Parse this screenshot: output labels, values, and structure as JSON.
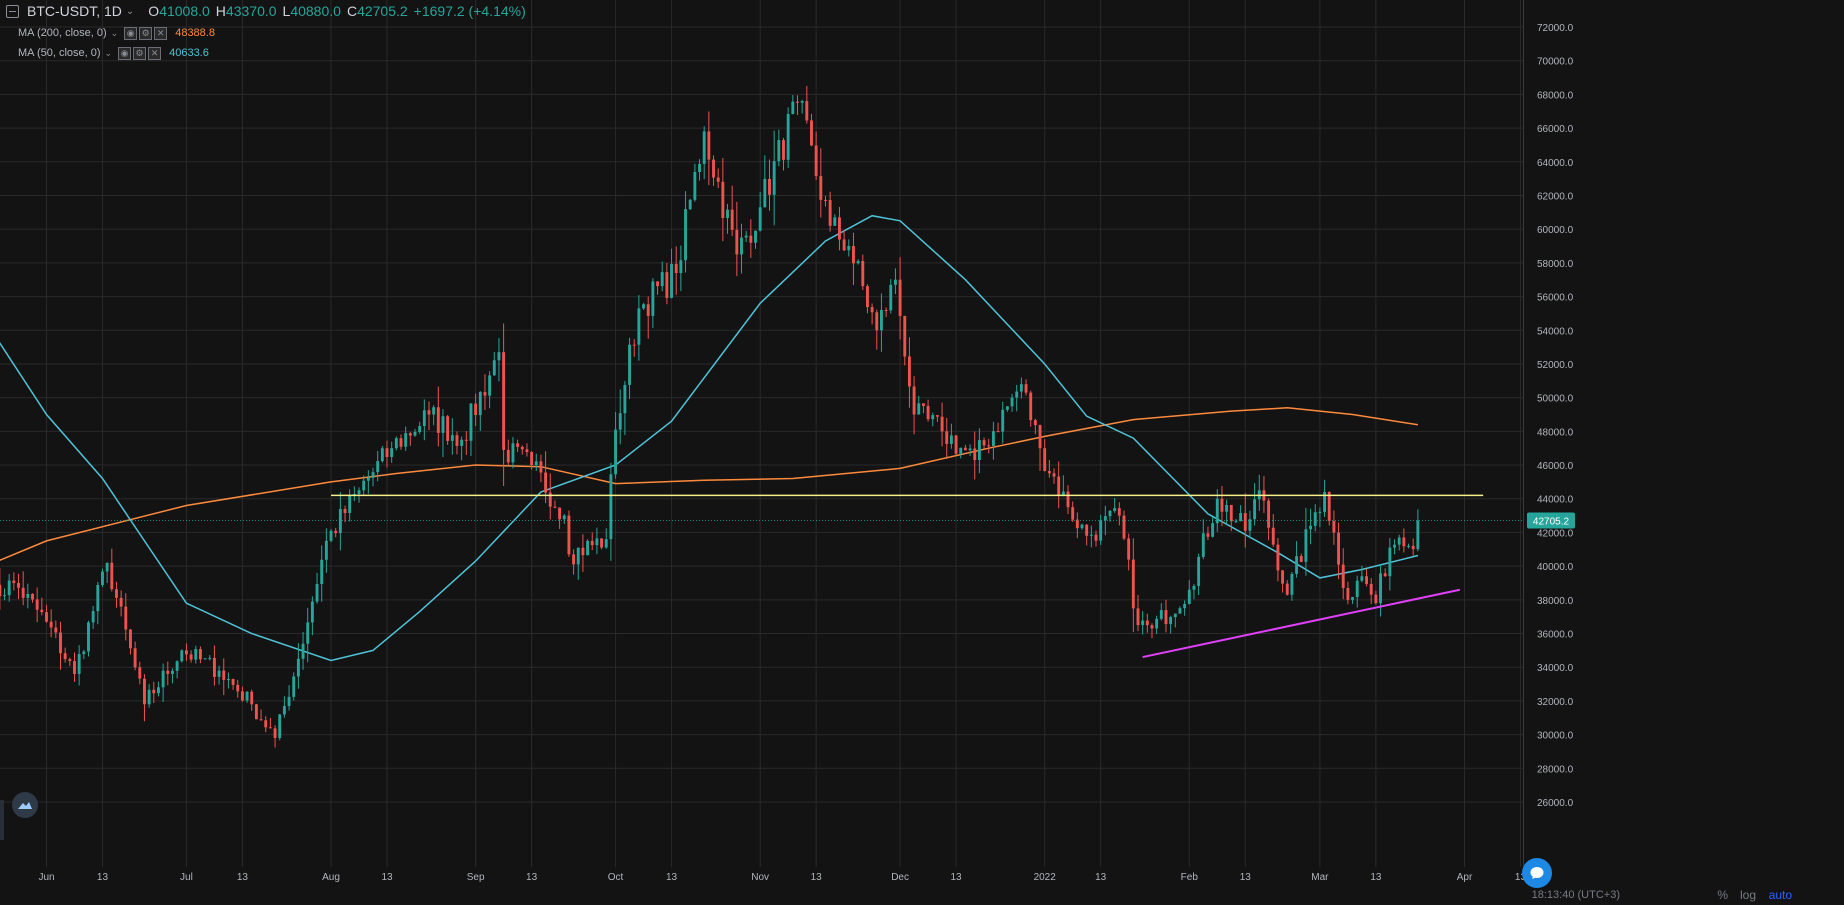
{
  "legend": {
    "symbol": "BTC-USDT, 1D",
    "open_label": "O",
    "open": "41008.0",
    "high_label": "H",
    "high": "43370.0",
    "low_label": "L",
    "low": "40880.0",
    "close_label": "C",
    "close": "42705.2",
    "change": "+1697.2 (+4.14%)",
    "ma200_label": "MA (200, close, 0)",
    "ma200_value": "48388.8",
    "ma50_label": "MA (50, close, 0)",
    "ma50_value": "40633.6"
  },
  "price_tag": "42705.2",
  "bottom": {
    "time": "18:13:40 (UTC+3)",
    "percent": "%",
    "log": "log",
    "auto": "auto"
  },
  "icons": [
    "collapse-icon",
    "chevron-down-icon",
    "settings-icon",
    "eye-icon",
    "close-icon",
    "logo-icon",
    "chat-icon"
  ],
  "colors": {
    "background": "#131313",
    "up": "#26a69a",
    "down": "#ef5350",
    "ma200": "#ff8a3d",
    "ma50": "#4fc3d8",
    "resistance": "#f6f08b",
    "support": "#e040fb",
    "grid": "#2a2a2a",
    "price_tag_bg": "#26a69a"
  },
  "chart_data": {
    "type": "candlestick",
    "title": "BTC-USDT, 1D",
    "y_axis": {
      "range": [
        24800,
        73200
      ],
      "ticks": [
        26000,
        28000,
        30000,
        32000,
        34000,
        36000,
        38000,
        40000,
        42000,
        44000,
        46000,
        48000,
        50000,
        52000,
        54000,
        56000,
        58000,
        60000,
        62000,
        64000,
        66000,
        68000,
        70000,
        72000
      ],
      "tick_labels": [
        "26000.0",
        "28000.0",
        "30000.0",
        "32000.0",
        "34000.0",
        "36000.0",
        "38000.0",
        "40000.0",
        "42000.0",
        "44000.0",
        "46000.0",
        "48000.0",
        "50000.0",
        "52000.0",
        "54000.0",
        "56000.0",
        "58000.0",
        "60000.0",
        "62000.0",
        "64000.0",
        "66000.0",
        "68000.0",
        "70000.0",
        "72000.0"
      ],
      "position": "right"
    },
    "x_axis": {
      "range": [
        "2021-05-19",
        "2022-04-13"
      ],
      "ticks": [
        "2021-06-01",
        "2021-06-13",
        "2021-07-01",
        "2021-07-13",
        "2021-08-01",
        "2021-08-13",
        "2021-09-01",
        "2021-09-13",
        "2021-10-01",
        "2021-10-13",
        "2021-11-01",
        "2021-11-13",
        "2021-12-01",
        "2021-12-13",
        "2022-01-01",
        "2022-01-13",
        "2022-02-01",
        "2022-02-13",
        "2022-03-01",
        "2022-03-13",
        "2022-04-01",
        "2022-04-13"
      ],
      "tick_labels": [
        "Jun",
        "13",
        "Jul",
        "13",
        "Aug",
        "13",
        "Sep",
        "13",
        "Oct",
        "13",
        "Nov",
        "13",
        "Dec",
        "13",
        "2022",
        "13",
        "Feb",
        "13",
        "Mar",
        "13",
        "Apr",
        "13"
      ]
    },
    "grid": true,
    "series": [
      {
        "name": "BTC-USDT",
        "kind": "ohlc_daily_approx",
        "start": "2021-05-19",
        "anchors": [
          [
            "2021-05-19",
            38000
          ],
          [
            "2021-05-25",
            39000
          ],
          [
            "2021-06-01",
            36700
          ],
          [
            "2021-06-07",
            33600
          ],
          [
            "2021-06-14",
            40200
          ],
          [
            "2021-06-22",
            31800
          ],
          [
            "2021-06-30",
            35000
          ],
          [
            "2021-07-08",
            33800
          ],
          [
            "2021-07-15",
            31800
          ],
          [
            "2021-07-20",
            29800
          ],
          [
            "2021-07-25",
            34500
          ],
          [
            "2021-07-31",
            41500
          ],
          [
            "2021-08-07",
            44500
          ],
          [
            "2021-08-14",
            47000
          ],
          [
            "2021-08-22",
            49000
          ],
          [
            "2021-08-29",
            47500
          ],
          [
            "2021-09-06",
            52700
          ],
          [
            "2021-09-07",
            46900
          ],
          [
            "2021-09-13",
            46000
          ],
          [
            "2021-09-20",
            43000
          ],
          [
            "2021-09-21",
            40700
          ],
          [
            "2021-09-29",
            41600
          ],
          [
            "2021-10-01",
            48100
          ],
          [
            "2021-10-06",
            55300
          ],
          [
            "2021-10-14",
            57400
          ],
          [
            "2021-10-20",
            65800
          ],
          [
            "2021-10-27",
            58500
          ],
          [
            "2021-11-01",
            61300
          ],
          [
            "2021-11-09",
            67500
          ],
          [
            "2021-11-16",
            60200
          ],
          [
            "2021-11-20",
            59000
          ],
          [
            "2021-11-26",
            54000
          ],
          [
            "2021-11-30",
            57000
          ],
          [
            "2021-12-04",
            49000
          ],
          [
            "2021-12-10",
            48000
          ],
          [
            "2021-12-17",
            46300
          ],
          [
            "2021-12-27",
            50800
          ],
          [
            "2021-12-31",
            47000
          ],
          [
            "2022-01-06",
            43500
          ],
          [
            "2022-01-10",
            41800
          ],
          [
            "2022-01-17",
            43000
          ],
          [
            "2022-01-21",
            36500
          ],
          [
            "2022-01-24",
            36300
          ],
          [
            "2022-02-01",
            38600
          ],
          [
            "2022-02-07",
            44000
          ],
          [
            "2022-02-13",
            42100
          ],
          [
            "2022-02-16",
            44500
          ],
          [
            "2022-02-22",
            38300
          ],
          [
            "2022-02-28",
            43200
          ],
          [
            "2022-03-02",
            44400
          ],
          [
            "2022-03-07",
            38000
          ],
          [
            "2022-03-10",
            39400
          ],
          [
            "2022-03-13",
            37800
          ],
          [
            "2022-03-16",
            41100
          ],
          [
            "2022-03-18",
            41700
          ],
          [
            "2022-03-20",
            41200
          ],
          [
            "2022-03-21",
            41008
          ]
        ],
        "last": {
          "date": "2022-03-22",
          "open": 41008.0,
          "high": 43370.0,
          "low": 40880.0,
          "close": 42705.2
        }
      },
      {
        "name": "MA (200, close, 0)",
        "kind": "line",
        "points": [
          [
            "2021-05-19",
            40000
          ],
          [
            "2021-06-01",
            41500
          ],
          [
            "2021-07-01",
            43600
          ],
          [
            "2021-08-01",
            45000
          ],
          [
            "2021-08-15",
            45500
          ],
          [
            "2021-09-01",
            46000
          ],
          [
            "2021-09-15",
            45900
          ],
          [
            "2021-10-01",
            44900
          ],
          [
            "2021-10-20",
            45100
          ],
          [
            "2021-11-08",
            45200
          ],
          [
            "2021-12-01",
            45800
          ],
          [
            "2021-12-20",
            47000
          ],
          [
            "2022-01-01",
            47700
          ],
          [
            "2022-01-20",
            48700
          ],
          [
            "2022-02-10",
            49200
          ],
          [
            "2022-02-22",
            49400
          ],
          [
            "2022-03-08",
            49000
          ],
          [
            "2022-03-22",
            48388.8
          ]
        ]
      },
      {
        "name": "MA (50, close, 0)",
        "kind": "line",
        "points": [
          [
            "2021-05-19",
            54500
          ],
          [
            "2021-06-01",
            49000
          ],
          [
            "2021-06-13",
            45200
          ],
          [
            "2021-07-01",
            37800
          ],
          [
            "2021-07-15",
            36000
          ],
          [
            "2021-08-01",
            34400
          ],
          [
            "2021-08-10",
            35000
          ],
          [
            "2021-08-20",
            37300
          ],
          [
            "2021-09-01",
            40300
          ],
          [
            "2021-09-15",
            44400
          ],
          [
            "2021-10-01",
            46000
          ],
          [
            "2021-10-13",
            48600
          ],
          [
            "2021-11-01",
            55600
          ],
          [
            "2021-11-15",
            59300
          ],
          [
            "2021-11-25",
            60800
          ],
          [
            "2021-12-01",
            60500
          ],
          [
            "2021-12-15",
            57000
          ],
          [
            "2022-01-01",
            52000
          ],
          [
            "2022-01-10",
            48900
          ],
          [
            "2022-01-20",
            47600
          ],
          [
            "2022-02-05",
            43100
          ],
          [
            "2022-02-20",
            40800
          ],
          [
            "2022-03-01",
            39300
          ],
          [
            "2022-03-10",
            39800
          ],
          [
            "2022-03-22",
            40633.6
          ]
        ]
      },
      {
        "name": "resistance",
        "kind": "trendline",
        "points": [
          [
            "2021-08-01",
            44200
          ],
          [
            "2022-04-05",
            44200
          ]
        ]
      },
      {
        "name": "support",
        "kind": "trendline",
        "points": [
          [
            "2022-01-22",
            34600
          ],
          [
            "2022-03-31",
            38600
          ]
        ]
      }
    ]
  }
}
